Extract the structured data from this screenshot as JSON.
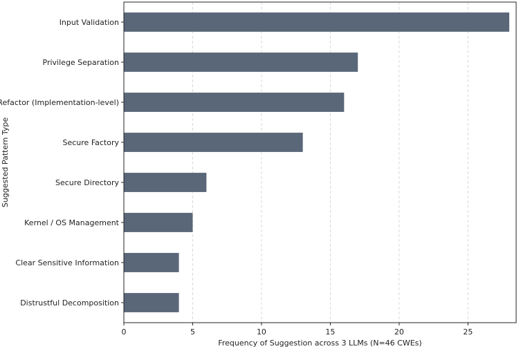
{
  "chart_data": {
    "type": "bar",
    "orientation": "horizontal",
    "title": "",
    "xlabel": "Frequency of Suggestion across 3 LLMs (N=46 CWEs)",
    "ylabel": "Suggested Pattern Type",
    "categories": [
      "Input Validation",
      "Privilege Separation",
      "Refactor (Implementation-level)",
      "Secure Factory",
      "Secure Directory",
      "Kernel / OS Management",
      "Clear Sensitive Information",
      "Distrustful Decomposition"
    ],
    "values": [
      28,
      17,
      16,
      13,
      6,
      5,
      4,
      4
    ],
    "xlim": [
      0,
      28.5
    ],
    "xticks": [
      "0",
      "5",
      "10",
      "15",
      "20",
      "25"
    ],
    "grid": "x-dashed",
    "bar_color": "#5a6778"
  }
}
